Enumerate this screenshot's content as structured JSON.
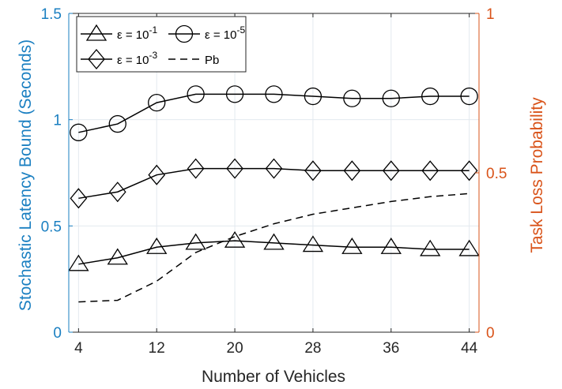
{
  "chart_data": {
    "type": "line",
    "xlabel": "Number of Vehicles",
    "ylabel_left": "Stochastic Latency Bound (Seconds)",
    "ylabel_right": "Task Loss Probability",
    "x_ticks": [
      4,
      12,
      20,
      28,
      36,
      44
    ],
    "y_left_ticks": [
      "0",
      "0.5",
      "1",
      "1.5"
    ],
    "y_right_ticks": [
      "0",
      "0.5",
      "1"
    ],
    "xlim": [
      3,
      45
    ],
    "ylim_left": [
      0,
      1.5
    ],
    "ylim_right": [
      0,
      1
    ],
    "grid": true,
    "legend_position": "top-left",
    "x": [
      4,
      8,
      12,
      16,
      20,
      24,
      28,
      32,
      36,
      40,
      44
    ],
    "series": [
      {
        "legend_prefix": "ε = 10",
        "legend_exp": "-1",
        "marker": "triangle",
        "axis": "left",
        "values": [
          0.32,
          0.35,
          0.4,
          0.42,
          0.43,
          0.42,
          0.41,
          0.4,
          0.4,
          0.39,
          0.39
        ]
      },
      {
        "legend_prefix": "ε = 10",
        "legend_exp": "-5",
        "marker": "circle",
        "axis": "left",
        "values": [
          0.94,
          0.98,
          1.08,
          1.12,
          1.12,
          1.12,
          1.11,
          1.1,
          1.1,
          1.11,
          1.11
        ]
      },
      {
        "legend_prefix": "ε = 10",
        "legend_exp": "-3",
        "marker": "diamond",
        "axis": "left",
        "values": [
          0.63,
          0.66,
          0.74,
          0.77,
          0.77,
          0.77,
          0.76,
          0.76,
          0.76,
          0.76,
          0.76
        ]
      },
      {
        "legend_label": "Pb",
        "marker": "none",
        "dashed": true,
        "axis": "right",
        "x": [
          4,
          8,
          12,
          16,
          20,
          24,
          28,
          32,
          36,
          40,
          44
        ],
        "values": [
          0.095,
          0.1,
          0.16,
          0.25,
          0.3,
          0.34,
          0.37,
          0.39,
          0.41,
          0.425,
          0.435
        ]
      }
    ]
  }
}
